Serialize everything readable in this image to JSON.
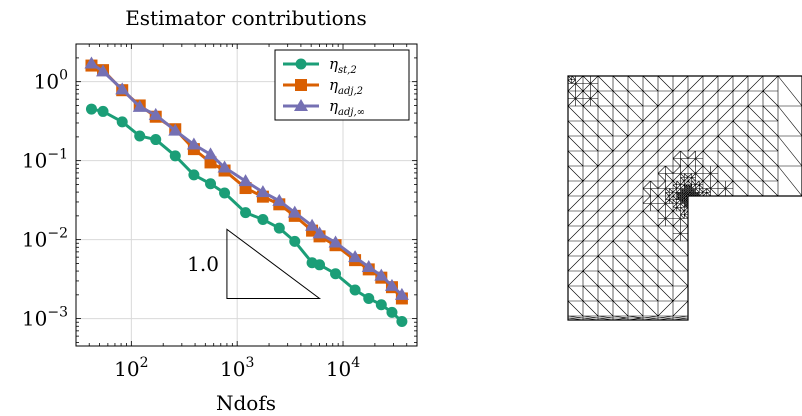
{
  "chart_data": [
    {
      "type": "line",
      "title": "Estimator contributions",
      "xlabel": "Ndofs",
      "ylabel": "",
      "xscale": "log",
      "yscale": "log",
      "xlim": [
        30,
        50000
      ],
      "ylim": [
        0.00045,
        3.0
      ],
      "grid": true,
      "legend_position": "top-right",
      "x_ticks": [
        {
          "value": 100,
          "base": "10",
          "exp": "2"
        },
        {
          "value": 1000,
          "base": "10",
          "exp": "3"
        },
        {
          "value": 10000,
          "base": "10",
          "exp": "4"
        }
      ],
      "y_ticks": [
        {
          "value": 1,
          "base": "10",
          "exp": "0"
        },
        {
          "value": 0.1,
          "base": "10",
          "exp": "−1"
        },
        {
          "value": 0.01,
          "base": "10",
          "exp": "−2"
        },
        {
          "value": 0.001,
          "base": "10",
          "exp": "−3"
        }
      ],
      "series": [
        {
          "name": "η_st,2",
          "legend_main": "η",
          "legend_sub": "st,2",
          "color": "#1b9e77",
          "marker": "circle",
          "x": [
            42,
            54,
            82,
            120,
            170,
            260,
            390,
            560,
            760,
            1200,
            1750,
            2500,
            3500,
            5100,
            6000,
            8500,
            13000,
            17500,
            23000,
            29000,
            36000
          ],
          "y": [
            0.45,
            0.42,
            0.31,
            0.205,
            0.185,
            0.115,
            0.066,
            0.051,
            0.039,
            0.022,
            0.018,
            0.014,
            0.0095,
            0.0051,
            0.0048,
            0.0037,
            0.0023,
            0.0018,
            0.0015,
            0.0012,
            0.00092
          ]
        },
        {
          "name": "η_adj,2",
          "legend_main": "η",
          "legend_sub": "adj,2",
          "color": "#d95f02",
          "marker": "square",
          "x": [
            42,
            54,
            82,
            120,
            170,
            260,
            390,
            560,
            760,
            1200,
            1750,
            2500,
            3500,
            5100,
            6000,
            8500,
            13000,
            17500,
            23000,
            29000,
            36000
          ],
          "y": [
            1.6,
            1.4,
            0.78,
            0.5,
            0.36,
            0.25,
            0.14,
            0.095,
            0.075,
            0.045,
            0.035,
            0.028,
            0.02,
            0.013,
            0.011,
            0.0085,
            0.0055,
            0.0042,
            0.0033,
            0.0025,
            0.0018
          ]
        },
        {
          "name": "η_adj,∞",
          "legend_main": "η",
          "legend_sub": "adj,∞",
          "color": "#7570b3",
          "marker": "triangle",
          "x": [
            42,
            54,
            82,
            120,
            170,
            260,
            390,
            560,
            760,
            1200,
            1750,
            2500,
            3500,
            5100,
            6000,
            8500,
            13000,
            17500,
            23000,
            29000,
            36000
          ],
          "y": [
            1.7,
            1.35,
            0.8,
            0.48,
            0.38,
            0.24,
            0.16,
            0.12,
            0.082,
            0.055,
            0.04,
            0.031,
            0.022,
            0.015,
            0.012,
            0.0092,
            0.006,
            0.0045,
            0.0035,
            0.0026,
            0.002
          ]
        }
      ],
      "annotations": [
        {
          "type": "slope_triangle",
          "label": "1.0",
          "x_start": 800,
          "x_end": 6000,
          "y_top": 0.0135,
          "y_bottom": 0.0018
        }
      ]
    }
  ],
  "mesh": {
    "type": "triangular mesh on L-shaped domain",
    "color": "#000000"
  }
}
